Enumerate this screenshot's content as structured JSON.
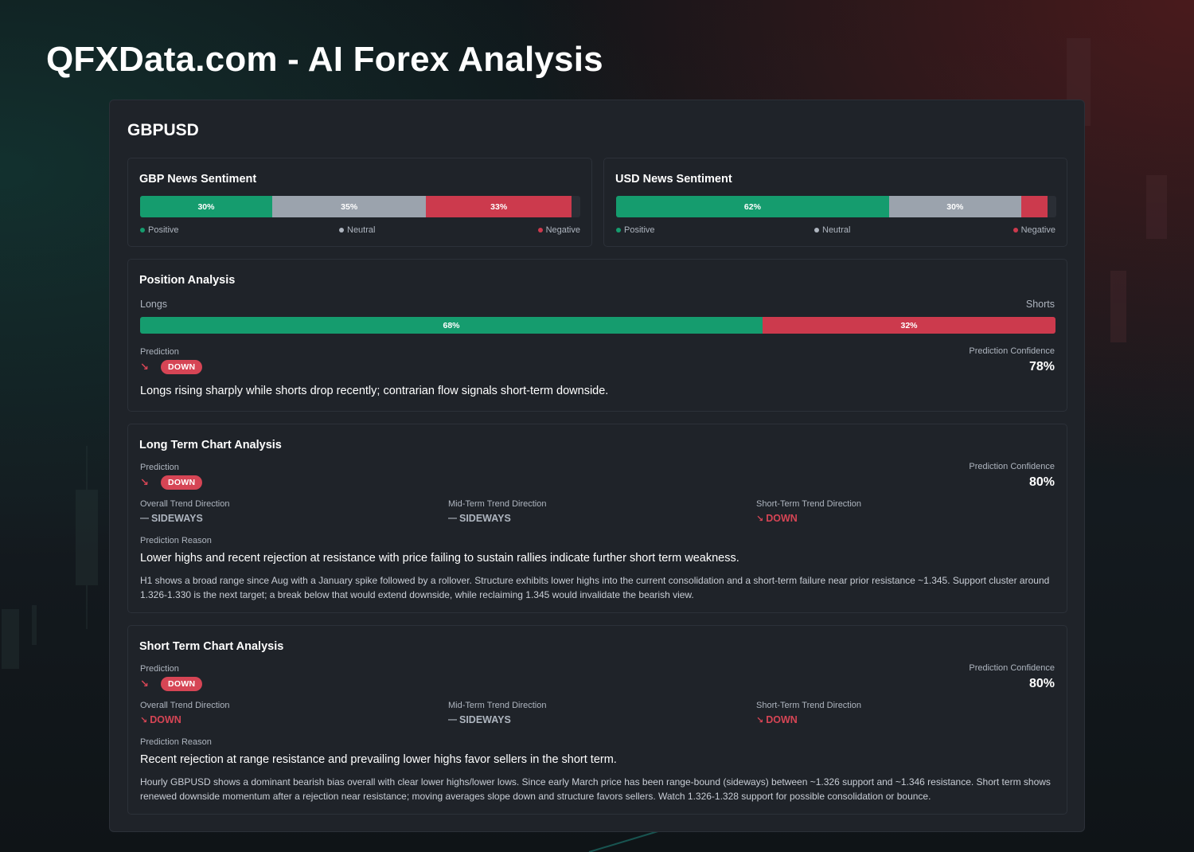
{
  "site": {
    "title": "QFXData.com - AI Forex Analysis"
  },
  "pair": "GBPUSD",
  "colors": {
    "positive": "#159c6e",
    "neutral": "#9ba3ad",
    "negative": "#cc3a4d",
    "down": "#d64555"
  },
  "gbp_sentiment": {
    "title": "GBP News Sentiment",
    "positive": 30,
    "neutral": 35,
    "negative": 33,
    "positive_label": "30%",
    "neutral_label": "35%",
    "negative_label": "33%",
    "legend": {
      "positive": "Positive",
      "neutral": "Neutral",
      "negative": "Negative"
    }
  },
  "usd_sentiment": {
    "title": "USD News Sentiment",
    "positive": 62,
    "neutral": 30,
    "negative": 6,
    "positive_label": "62%",
    "neutral_label": "30%",
    "negative_label": "",
    "legend": {
      "positive": "Positive",
      "neutral": "Neutral",
      "negative": "Negative"
    }
  },
  "position": {
    "title": "Position Analysis",
    "longs_label": "Longs",
    "shorts_label": "Shorts",
    "longs": 68,
    "shorts": 32,
    "longs_text": "68%",
    "shorts_text": "32%",
    "prediction_label": "Prediction",
    "prediction": "DOWN",
    "confidence_label": "Prediction Confidence",
    "confidence": "78%",
    "reason": "Longs rising sharply while shorts drop recently; contrarian flow signals short-term downside."
  },
  "long_term": {
    "title": "Long Term Chart Analysis",
    "prediction_label": "Prediction",
    "prediction": "DOWN",
    "confidence_label": "Prediction Confidence",
    "confidence": "80%",
    "overall_label": "Overall Trend Direction",
    "overall": "SIDEWAYS",
    "mid_label": "Mid-Term Trend Direction",
    "mid": "SIDEWAYS",
    "short_label": "Short-Term Trend Direction",
    "short": "DOWN",
    "reason_label": "Prediction Reason",
    "reason": "Lower highs and recent rejection at resistance with price failing to sustain rallies indicate further short term weakness.",
    "detail": "H1 shows a broad range since Aug with a January spike followed by a rollover. Structure exhibits lower highs into the current consolidation and a short-term failure near prior resistance ~1.345. Support cluster around 1.326-1.330 is the next target; a break below that would extend downside, while reclaiming 1.345 would invalidate the bearish view."
  },
  "short_term": {
    "title": "Short Term Chart Analysis",
    "prediction_label": "Prediction",
    "prediction": "DOWN",
    "confidence_label": "Prediction Confidence",
    "confidence": "80%",
    "overall_label": "Overall Trend Direction",
    "overall": "DOWN",
    "mid_label": "Mid-Term Trend Direction",
    "mid": "SIDEWAYS",
    "short_label": "Short-Term Trend Direction",
    "short": "DOWN",
    "reason_label": "Prediction Reason",
    "reason": "Recent rejection at range resistance and prevailing lower highs favor sellers in the short term.",
    "detail": "Hourly GBPUSD shows a dominant bearish bias overall with clear lower highs/lower lows. Since early March price has been range-bound (sideways) between ~1.326 support and ~1.346 resistance. Short term shows renewed downside momentum after a rejection near resistance; moving averages slope down and structure favors sellers. Watch 1.326-1.328 support for possible consolidation or bounce."
  },
  "icons": {
    "down": "trend-down-icon",
    "sideways": "trend-sideways-icon"
  }
}
